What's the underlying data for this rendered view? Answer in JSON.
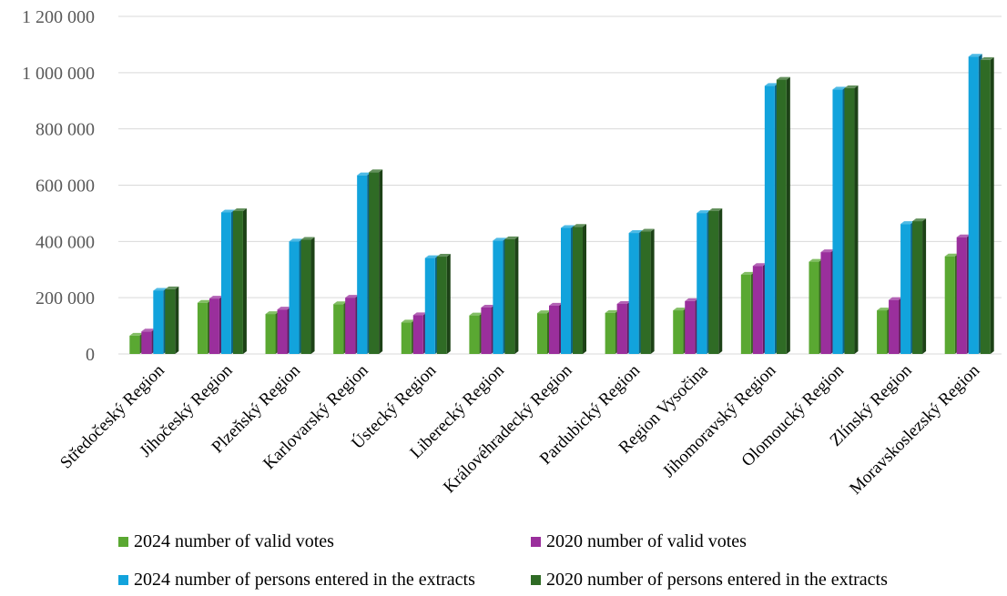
{
  "chart_data": {
    "type": "bar",
    "title": "",
    "xlabel": "",
    "ylabel": "",
    "ylim": [
      0,
      1200000
    ],
    "yticks": [
      0,
      200000,
      400000,
      600000,
      800000,
      1000000,
      1200000
    ],
    "ytick_labels": [
      "0",
      "200 000",
      "400 000",
      "600 000",
      "800 000",
      "1 000 000",
      "1 200 000"
    ],
    "grid": true,
    "legend_position": "bottom",
    "categories": [
      "Středočeský Region",
      "Jihočeský Region",
      "Plzeňský Region",
      "Karlovarský Region",
      "Ústecký Region",
      "Liberecký Region",
      "Královéhradecký Region",
      "Pardubický Region",
      "Region Vysočina",
      "Jihomoravský Region",
      "Olomoucký Region",
      "Zlínský Region",
      "Moravskoslezský Region"
    ],
    "series": [
      {
        "name": "2024 number of valid votes",
        "color": "#5aa832",
        "values": [
          65000,
          182000,
          142000,
          177000,
          112000,
          137000,
          145000,
          146000,
          155000,
          282000,
          328000,
          155000,
          347000
        ]
      },
      {
        "name": "2020 number of valid votes",
        "color": "#9a2f9c",
        "values": [
          80000,
          197000,
          158000,
          200000,
          138000,
          165000,
          172000,
          178000,
          188000,
          313000,
          362000,
          192000,
          415000
        ]
      },
      {
        "name": "2024 number of persons entered in the extracts",
        "color": "#12a3dc",
        "values": [
          225000,
          503000,
          400000,
          635000,
          341000,
          403000,
          448000,
          430000,
          501000,
          953000,
          940000,
          462000,
          1057000
        ]
      },
      {
        "name": "2020 number of persons entered in the extracts",
        "color": "#2f6b25",
        "values": [
          230000,
          508000,
          406000,
          646000,
          346000,
          408000,
          452000,
          435000,
          508000,
          975000,
          945000,
          472000,
          1045000
        ]
      }
    ]
  }
}
